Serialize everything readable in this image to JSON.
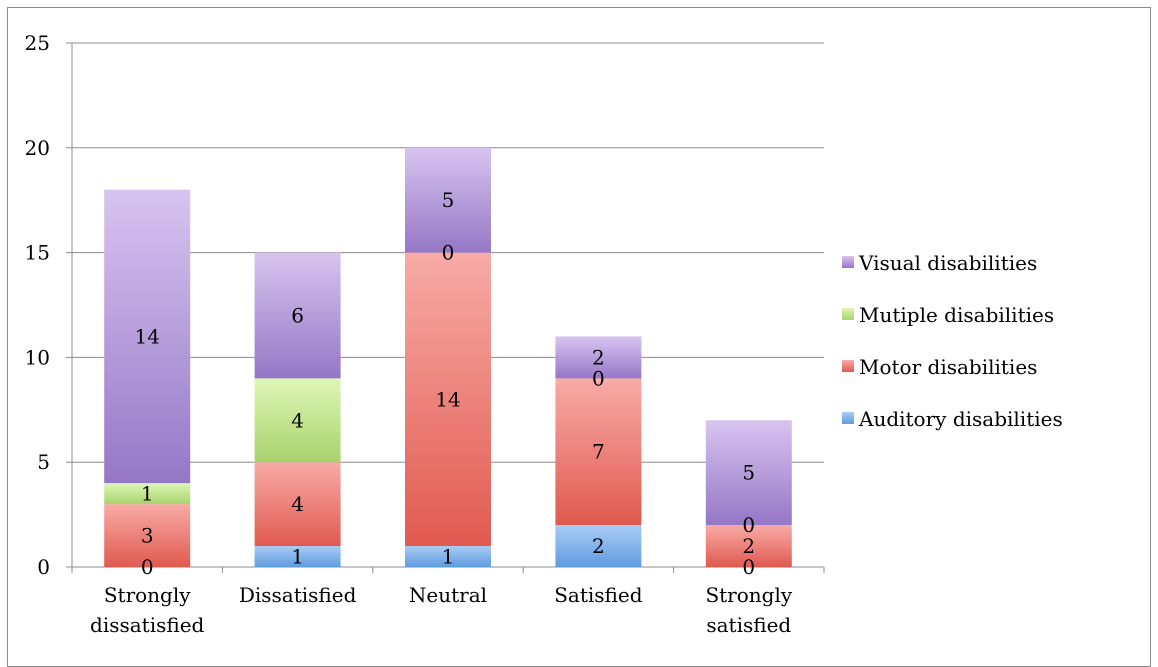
{
  "chart_data": {
    "type": "bar",
    "stacked": true,
    "title": "",
    "xlabel": "",
    "ylabel": "",
    "ylim": [
      0,
      25
    ],
    "yticks": [
      0,
      5,
      10,
      15,
      20,
      25
    ],
    "grid": true,
    "legend_position": "right",
    "categories": [
      "Strongly dissatisfied",
      "Dissatisfied",
      "Neutral",
      "Satisfied",
      "Strongly satisfied"
    ],
    "series": [
      {
        "name": "Auditory disabilities",
        "color_light": "#a9ccf5",
        "color_dark": "#5f9ce0",
        "values": [
          0,
          1,
          1,
          2,
          0
        ],
        "labels": [
          "0",
          "1",
          "1",
          "2",
          "0"
        ]
      },
      {
        "name": "Motor disabilities",
        "color_light": "#f8aba6",
        "color_dark": "#e05a50",
        "values": [
          3,
          4,
          14,
          7,
          2
        ],
        "labels": [
          "3",
          "4",
          "14",
          "7",
          "2"
        ]
      },
      {
        "name": "Mutiple disabilities",
        "color_light": "#def7b6",
        "color_dark": "#a9d26c",
        "values": [
          1,
          4,
          0,
          0,
          0
        ],
        "labels": [
          "1",
          "4",
          "0",
          "0",
          "0"
        ]
      },
      {
        "name": "Visual disabilities",
        "color_light": "#d8c4f0",
        "color_dark": "#9577c6",
        "values": [
          14,
          6,
          5,
          2,
          5
        ],
        "labels": [
          "14",
          "6",
          "5",
          "2",
          "5"
        ]
      }
    ],
    "legend_order": [
      3,
      2,
      1,
      0
    ]
  }
}
